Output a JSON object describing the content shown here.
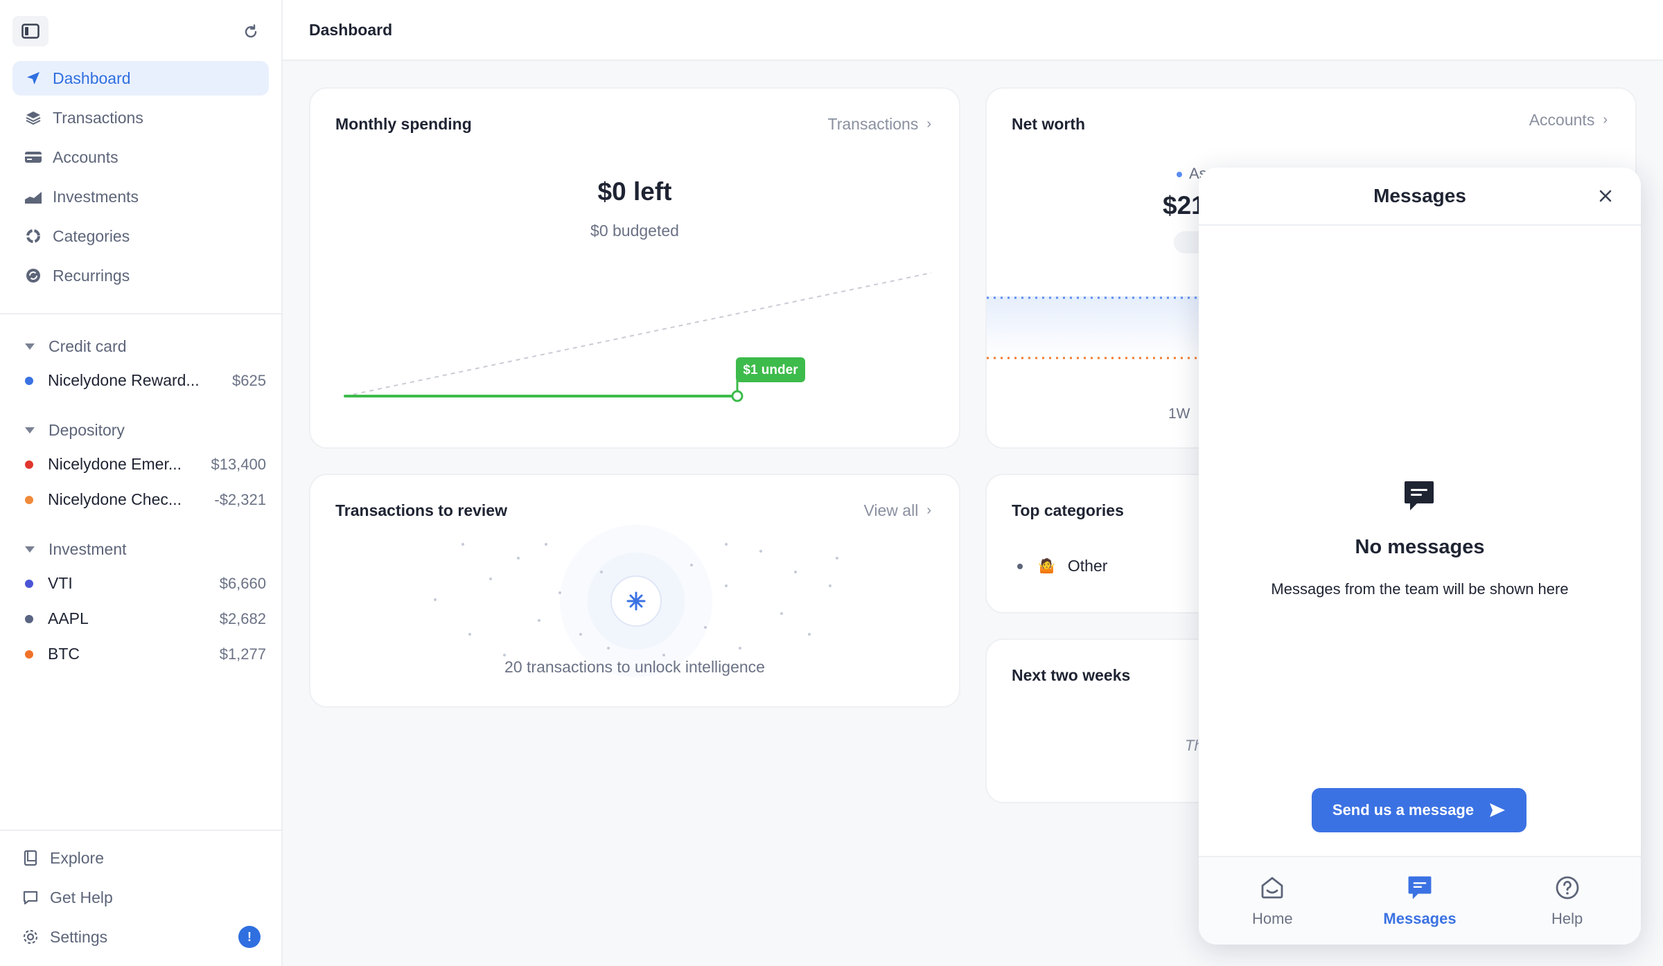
{
  "header": {
    "title": "Dashboard"
  },
  "sidebar": {
    "nav": [
      {
        "label": "Dashboard",
        "icon": "navigation-arrow-icon"
      },
      {
        "label": "Transactions",
        "icon": "layers-icon"
      },
      {
        "label": "Accounts",
        "icon": "credit-card-icon"
      },
      {
        "label": "Investments",
        "icon": "chart-icon"
      },
      {
        "label": "Categories",
        "icon": "pie-icon"
      },
      {
        "label": "Recurrings",
        "icon": "recurring-icon"
      }
    ],
    "groups": [
      {
        "label": "Credit card",
        "accounts": [
          {
            "name": "Nicelydone Reward...",
            "amount": "$625",
            "color": "#3b72e3"
          }
        ]
      },
      {
        "label": "Depository",
        "accounts": [
          {
            "name": "Nicelydone Emer...",
            "amount": "$13,400",
            "color": "#e0362e"
          },
          {
            "name": "Nicelydone Chec...",
            "amount": "-$2,321",
            "color": "#f08a3a"
          }
        ]
      },
      {
        "label": "Investment",
        "accounts": [
          {
            "name": "VTI",
            "amount": "$6,660",
            "color": "#4a55d6"
          },
          {
            "name": "AAPL",
            "amount": "$2,682",
            "color": "#5a6583"
          },
          {
            "name": "BTC",
            "amount": "$1,277",
            "color": "#f0722a"
          }
        ]
      }
    ],
    "bottom": [
      {
        "label": "Explore",
        "icon": "book-icon"
      },
      {
        "label": "Get Help",
        "icon": "chat-bubble-icon"
      },
      {
        "label": "Settings",
        "icon": "gear-icon"
      }
    ],
    "settings_badge": "!"
  },
  "monthly_spending": {
    "title": "Monthly spending",
    "link": "Transactions",
    "value": "$0 left",
    "budgeted": "$0 budgeted",
    "tag": "$1 under"
  },
  "net_worth": {
    "title": "Net worth",
    "link": "Accounts",
    "legend_partial": "As",
    "value_partial": "$21",
    "range_label": "1W"
  },
  "review": {
    "title": "Transactions to review",
    "link": "View all",
    "message": "20 transactions to unlock intelligence"
  },
  "top_categories": {
    "title": "Top categories",
    "items": [
      {
        "label": "Other"
      }
    ]
  },
  "next_two_weeks": {
    "title": "Next two weeks",
    "partial_text": "Th"
  },
  "messages": {
    "title": "Messages",
    "empty_title": "No messages",
    "empty_sub": "Messages from the team will be shown here",
    "send_label": "Send us a message",
    "tabs": [
      {
        "label": "Home"
      },
      {
        "label": "Messages"
      },
      {
        "label": "Help"
      }
    ]
  },
  "colors": {
    "accent": "#2f6fe0",
    "success": "#3dbb4b",
    "asset_line": "#5b8def",
    "liability_line": "#f07a2e"
  }
}
